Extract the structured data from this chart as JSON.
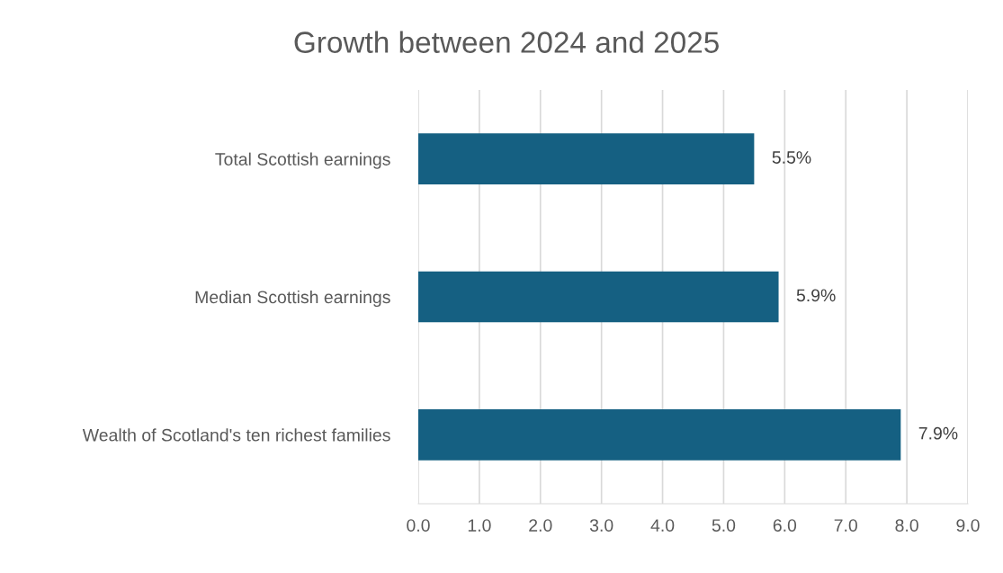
{
  "chart_data": {
    "type": "bar",
    "orientation": "horizontal",
    "title": "Growth between 2024 and 2025",
    "categories": [
      "Total Scottish earnings",
      "Median Scottish earnings",
      "Wealth of Scotland's ten richest families"
    ],
    "values": [
      5.5,
      5.9,
      7.9
    ],
    "value_labels": [
      "5.5%",
      "5.9%",
      "7.9%"
    ],
    "color": "#156082",
    "xlim": [
      0,
      9
    ],
    "xticks": [
      {
        "value": 0,
        "label": "0.0"
      },
      {
        "value": 1,
        "label": "1.0"
      },
      {
        "value": 2,
        "label": "2.0"
      },
      {
        "value": 3,
        "label": "3.0"
      },
      {
        "value": 4,
        "label": "4.0"
      },
      {
        "value": 5,
        "label": "5.0"
      },
      {
        "value": 6,
        "label": "6.0"
      },
      {
        "value": 7,
        "label": "7.0"
      },
      {
        "value": 8,
        "label": "8.0"
      },
      {
        "value": 9,
        "label": "9.0"
      }
    ],
    "grid": "x",
    "legend": false
  }
}
